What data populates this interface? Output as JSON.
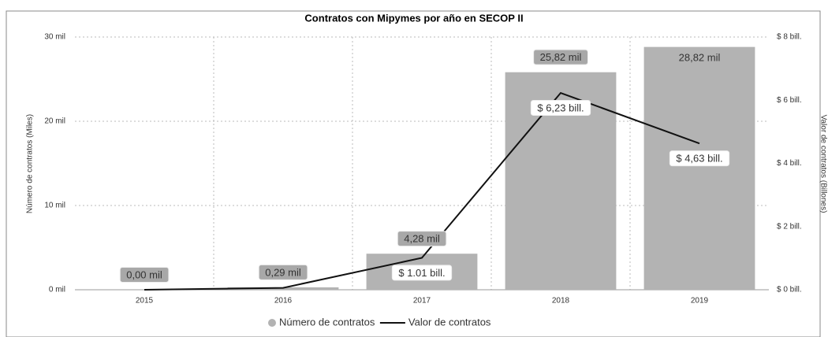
{
  "chart_data": {
    "type": "bar+line",
    "title": "Contratos con Mipymes por año en SECOP II",
    "y_label": "Número de contratos (Miles)",
    "y2_label": "Valor de contratos (Billones)",
    "categories": [
      "2015",
      "2016",
      "2017",
      "2018",
      "2019"
    ],
    "series": [
      {
        "name": "Número de contratos",
        "type": "bar",
        "color": "#b3b3b3",
        "axis": "y",
        "values": [
          0.0,
          0.29,
          4.28,
          25.82,
          28.82
        ],
        "value_labels": [
          "0,00 mil",
          "0,29 mil",
          "4,28 mil",
          "25,82 mil",
          "28,82 mil"
        ]
      },
      {
        "name": "Valor de contratos",
        "type": "line",
        "color": "#111111",
        "axis": "y2",
        "values": [
          0,
          0.06,
          1.01,
          6.23,
          4.63
        ],
        "value_labels": [
          null,
          null,
          "$ 1.01 bill.",
          "$ 6,23 bill.",
          "$ 4,63 bill."
        ]
      }
    ],
    "ylim": [
      0,
      30
    ],
    "yticks": [
      {
        "value": 0,
        "label": "0 mil"
      },
      {
        "value": 10,
        "label": "10 mil"
      },
      {
        "value": 20,
        "label": "20 mil"
      },
      {
        "value": 30,
        "label": "30 mil"
      }
    ],
    "y2lim": [
      0,
      8
    ],
    "y2ticks": [
      {
        "value": 0,
        "label": "$ 0 bill."
      },
      {
        "value": 2,
        "label": "$ 2 bill."
      },
      {
        "value": 4,
        "label": "$ 4 bill."
      },
      {
        "value": 6,
        "label": "$ 6 bill."
      },
      {
        "value": 8,
        "label": "$ 8 bill."
      }
    ],
    "grid": true,
    "legend": "bottom"
  }
}
